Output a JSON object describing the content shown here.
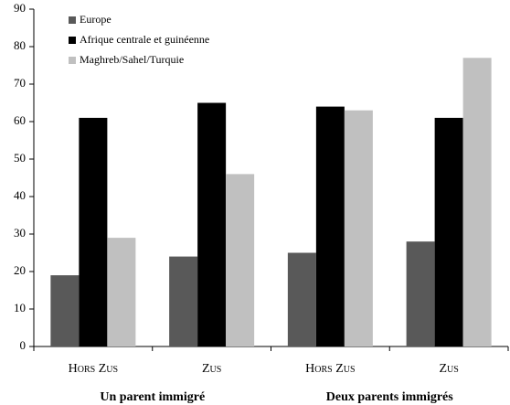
{
  "chart_data": {
    "type": "bar",
    "categories": [
      "Hors Zus",
      "Zus",
      "Hors Zus",
      "Zus"
    ],
    "group_labels": [
      "Un parent immigré",
      "Deux parents immigrés"
    ],
    "series": [
      {
        "name": "Europe",
        "color": "#595959",
        "values": [
          19,
          24,
          25,
          28
        ]
      },
      {
        "name": "Afrique centrale et guinéenne",
        "color": "#000000",
        "values": [
          61,
          65,
          64,
          61
        ]
      },
      {
        "name": "Maghreb/Sahel/Turquie",
        "color": "#c0c0c0",
        "values": [
          29,
          46,
          63,
          77
        ]
      }
    ],
    "ylim": [
      0,
      90
    ],
    "yticks": [
      0,
      10,
      20,
      30,
      40,
      50,
      60,
      70,
      80,
      90
    ],
    "legend": "upper-left",
    "grid": false
  }
}
